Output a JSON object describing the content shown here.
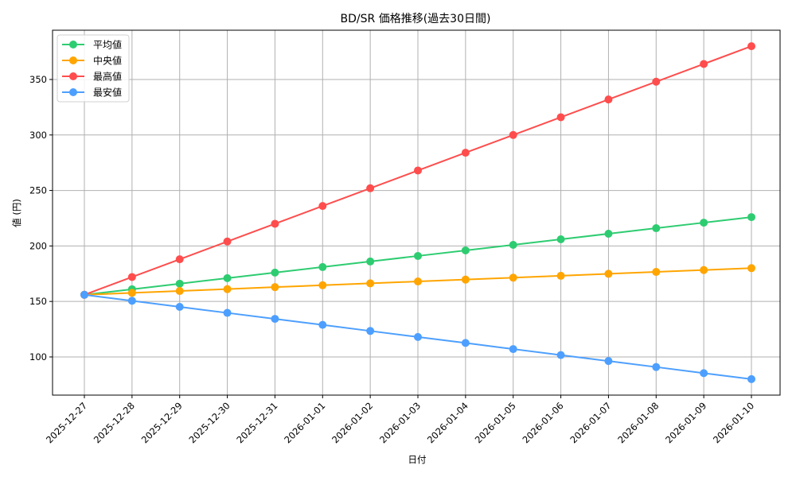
{
  "chart_data": {
    "type": "line",
    "title": "BD/SR 価格推移(過去30日間)",
    "xlabel": "日付",
    "ylabel": "値 (円)",
    "categories": [
      "2025-12-27",
      "2025-12-28",
      "2025-12-29",
      "2025-12-30",
      "2025-12-31",
      "2026-01-01",
      "2026-01-02",
      "2026-01-03",
      "2026-01-04",
      "2026-01-05",
      "2026-01-06",
      "2026-01-07",
      "2026-01-08",
      "2026-01-09",
      "2026-01-10"
    ],
    "series": [
      {
        "name": "平均値",
        "color": "#2ecc71",
        "values": [
          156,
          161,
          166,
          171,
          176,
          181,
          186,
          191,
          196,
          201,
          206,
          211,
          216,
          221,
          226
        ]
      },
      {
        "name": "中央値",
        "color": "#ffa500",
        "values": [
          156,
          157.7,
          159.4,
          161.1,
          162.9,
          164.6,
          166.3,
          168,
          169.7,
          171.4,
          173.1,
          174.9,
          176.6,
          178.3,
          180
        ]
      },
      {
        "name": "最高値",
        "color": "#ff4d4d",
        "values": [
          156,
          172,
          188,
          204,
          220,
          236,
          252,
          268,
          284,
          300,
          316,
          332,
          348,
          364,
          380
        ]
      },
      {
        "name": "最安値",
        "color": "#4d9fff",
        "values": [
          156,
          150.6,
          145.1,
          139.7,
          134.3,
          128.9,
          123.4,
          118,
          112.6,
          107.1,
          101.7,
          96.3,
          90.9,
          85.4,
          80
        ]
      }
    ],
    "yticks": [
      100,
      150,
      200,
      250,
      300,
      350
    ],
    "ylim": [
      65.6,
      394.4
    ],
    "grid": true,
    "legend_position": "upper left"
  }
}
